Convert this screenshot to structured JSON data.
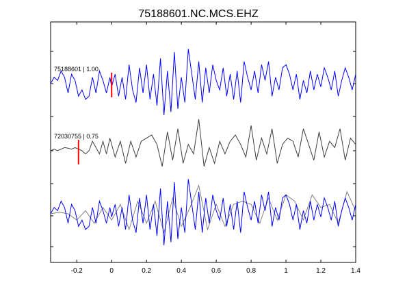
{
  "chart_data": {
    "type": "line",
    "title": "75188601.NC.MCS.EHZ",
    "xlabel": "",
    "ylabel": "",
    "xlim": [
      -0.35,
      1.4
    ],
    "xticks": [
      -0.2,
      0,
      0.2,
      0.4,
      0.6,
      0.8,
      1,
      1.2,
      1.4
    ],
    "xtick_labels": [
      "-0.2",
      "0",
      "0.2",
      "0.4",
      "0.6",
      "0.8",
      "1",
      "1.2",
      "1.4"
    ],
    "grid": false,
    "colors": {
      "blue": "#0000ff",
      "dark": "#3c3c3c",
      "gray": "#808080",
      "marker": "#ff0000"
    },
    "panels": [
      {
        "label": "75188601 | 1.00",
        "pick_x": 0.0,
        "series": [
          "blue"
        ]
      },
      {
        "label": "72030755 | 0.75",
        "pick_x": -0.19,
        "series": [
          "dark"
        ]
      },
      {
        "label": "",
        "pick_x": null,
        "series": [
          "gray",
          "blue"
        ]
      }
    ],
    "series": [
      {
        "color_key": "blue",
        "x": [
          -0.35,
          -0.33,
          -0.31,
          -0.29,
          -0.27,
          -0.25,
          -0.23,
          -0.21,
          -0.19,
          -0.17,
          -0.15,
          -0.13,
          -0.11,
          -0.09,
          -0.07,
          -0.05,
          -0.03,
          -0.01,
          0.0,
          0.02,
          0.04,
          0.06,
          0.08,
          0.1,
          0.12,
          0.14,
          0.16,
          0.18,
          0.2,
          0.22,
          0.24,
          0.26,
          0.28,
          0.3,
          0.32,
          0.34,
          0.36,
          0.38,
          0.4,
          0.42,
          0.44,
          0.46,
          0.48,
          0.5,
          0.52,
          0.54,
          0.56,
          0.58,
          0.6,
          0.62,
          0.64,
          0.66,
          0.68,
          0.7,
          0.72,
          0.74,
          0.76,
          0.78,
          0.8,
          0.82,
          0.84,
          0.86,
          0.88,
          0.9,
          0.92,
          0.94,
          0.96,
          0.98,
          1.0,
          1.02,
          1.04,
          1.06,
          1.08,
          1.1,
          1.12,
          1.14,
          1.16,
          1.18,
          1.2,
          1.22,
          1.24,
          1.26,
          1.28,
          1.3,
          1.32,
          1.34,
          1.36,
          1.38,
          1.4
        ],
        "y": [
          0.0,
          0.2,
          0.1,
          0.4,
          0.2,
          -0.3,
          0.3,
          0.1,
          -0.4,
          -0.2,
          -0.5,
          -0.4,
          0.2,
          -0.3,
          0.4,
          0.1,
          -0.3,
          0.2,
          -0.1,
          0.3,
          -0.4,
          0.2,
          -0.5,
          0.6,
          -0.2,
          -0.6,
          0.5,
          -0.3,
          0.6,
          -0.5,
          0.3,
          -0.7,
          0.8,
          -1.0,
          0.4,
          -0.9,
          1.0,
          -0.8,
          0.2,
          -0.6,
          1.1,
          0.3,
          -0.5,
          0.7,
          -0.6,
          0.5,
          -0.3,
          0.6,
          0.1,
          -0.2,
          0.5,
          -0.4,
          0.3,
          -0.5,
          0.4,
          -0.6,
          0.7,
          0.2,
          -0.2,
          0.4,
          -0.3,
          0.6,
          0.1,
          0.7,
          -0.4,
          0.2,
          -0.2,
          0.5,
          0.6,
          0.3,
          -0.2,
          0.3,
          -0.5,
          0.1,
          -0.3,
          0.4,
          -0.2,
          0.3,
          -0.1,
          0.5,
          0.2,
          -0.2,
          0.4,
          -0.4,
          0.1,
          0.5,
          0.2,
          -0.2,
          0.3
        ]
      },
      {
        "color_key": "dark",
        "x": [
          -0.35,
          -0.33,
          -0.31,
          -0.29,
          -0.27,
          -0.25,
          -0.23,
          -0.21,
          -0.19,
          -0.17,
          -0.15,
          -0.13,
          -0.11,
          -0.09,
          -0.07,
          -0.05,
          -0.03,
          -0.01,
          0.02,
          0.05,
          0.08,
          0.11,
          0.14,
          0.17,
          0.2,
          0.23,
          0.26,
          0.29,
          0.32,
          0.35,
          0.38,
          0.41,
          0.44,
          0.47,
          0.5,
          0.53,
          0.56,
          0.59,
          0.62,
          0.65,
          0.68,
          0.71,
          0.74,
          0.77,
          0.8,
          0.83,
          0.86,
          0.89,
          0.92,
          0.95,
          0.98,
          1.01,
          1.04,
          1.07,
          1.1,
          1.13,
          1.16,
          1.19,
          1.22,
          1.25,
          1.28,
          1.31,
          1.34,
          1.37,
          1.4
        ],
        "y": [
          0.0,
          0.05,
          0.0,
          0.05,
          0.1,
          0.08,
          0.05,
          0.1,
          0.05,
          0.0,
          -0.1,
          0.0,
          0.3,
          0.1,
          -0.1,
          0.3,
          -0.1,
          0.4,
          -0.2,
          0.3,
          -0.4,
          0.3,
          -0.2,
          0.3,
          0.4,
          0.5,
          0.2,
          -0.5,
          0.6,
          -0.3,
          0.7,
          -0.4,
          0.2,
          -0.1,
          1.0,
          -0.5,
          0.1,
          -0.4,
          0.3,
          -0.1,
          0.3,
          0.5,
          0.2,
          -0.2,
          0.8,
          -0.3,
          0.4,
          -0.1,
          0.7,
          -0.4,
          0.2,
          0.4,
          0.3,
          -0.2,
          0.7,
          0.2,
          -0.3,
          0.6,
          -0.2,
          0.3,
          0.1,
          0.7,
          -0.3,
          0.4,
          0.2
        ]
      },
      {
        "color_key": "gray",
        "x": [
          -0.35,
          -0.3,
          -0.25,
          -0.2,
          -0.15,
          -0.1,
          -0.05,
          0.0,
          0.05,
          0.1,
          0.15,
          0.2,
          0.25,
          0.3,
          0.35,
          0.4,
          0.45,
          0.5,
          0.55,
          0.6,
          0.65,
          0.7,
          0.75,
          0.8,
          0.85,
          0.9,
          0.95,
          1.0,
          1.05,
          1.1,
          1.15,
          1.2,
          1.25,
          1.3,
          1.35,
          1.4
        ],
        "y": [
          0.0,
          0.05,
          0.0,
          -0.2,
          0.1,
          -0.3,
          0.2,
          -0.2,
          0.3,
          -0.5,
          0.4,
          -0.3,
          0.4,
          -0.6,
          0.5,
          -0.4,
          0.2,
          0.9,
          -0.5,
          0.3,
          -0.4,
          0.3,
          0.4,
          0.3,
          -0.3,
          0.5,
          -0.2,
          0.6,
          0.4,
          -0.2,
          0.6,
          0.2,
          0.3,
          -0.3,
          0.7,
          0.1
        ]
      }
    ]
  }
}
